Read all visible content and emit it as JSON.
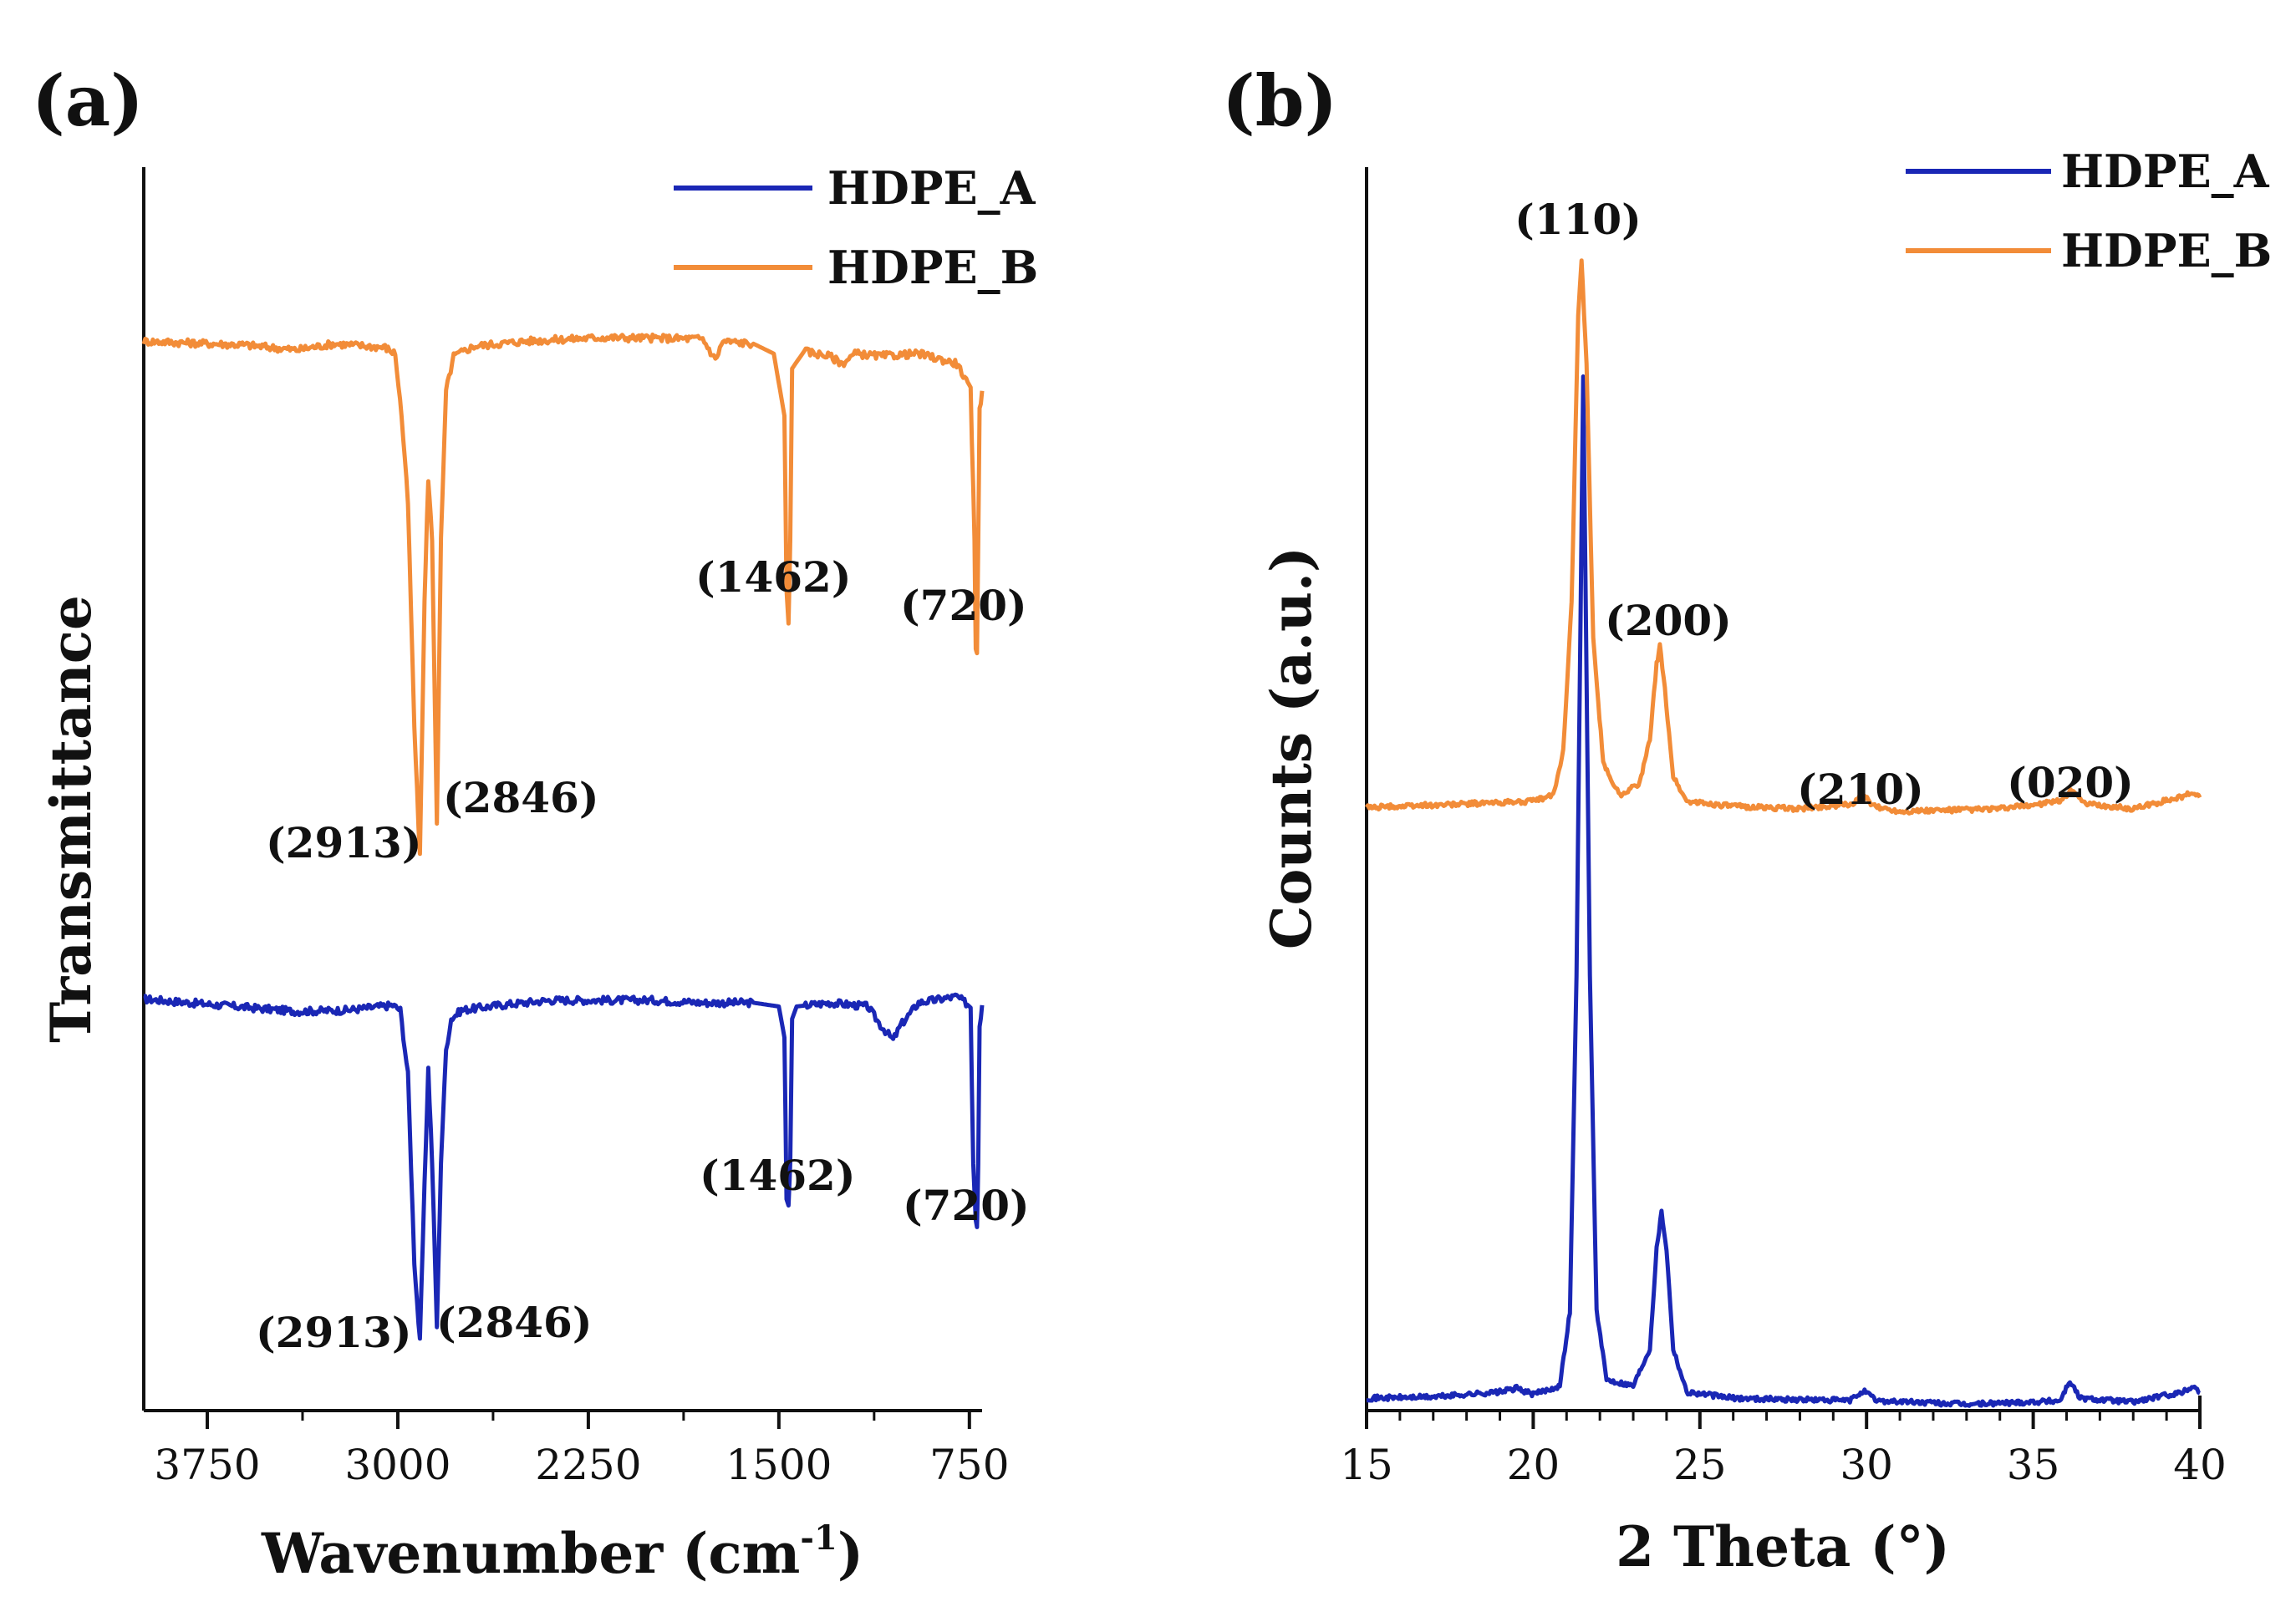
{
  "panel_a": {
    "label": "(a)"
  },
  "panel_b": {
    "label": "(b)"
  },
  "chart_data": [
    {
      "type": "line",
      "panel": "(a)",
      "title": "",
      "xlabel_main": "Wavenumber (cm",
      "xlabel_sup": "-1",
      "xlabel_close": ")",
      "ylabel": "Transmittance",
      "xlim": [
        4000,
        700
      ],
      "x_reversed": true,
      "ylim": [
        0,
        1
      ],
      "xticks": [
        3750,
        3000,
        2250,
        1500,
        750
      ],
      "xtick_labels": [
        "3750",
        "3000",
        "2250",
        "1500",
        "750"
      ],
      "legend_position": "top-right",
      "series": [
        {
          "name": "HDPE_A",
          "color": "#1a27b5",
          "baseline": 0.33,
          "points": [
            [
              4000,
              0.331
            ],
            [
              3700,
              0.326
            ],
            [
              3400,
              0.321
            ],
            [
              3200,
              0.322
            ],
            [
              3020,
              0.326
            ],
            [
              2990,
              0.322
            ],
            [
              2960,
              0.27
            ],
            [
              2935,
              0.12
            ],
            [
              2913,
              0.055
            ],
            [
              2895,
              0.18
            ],
            [
              2880,
              0.275
            ],
            [
              2865,
              0.2
            ],
            [
              2846,
              0.068
            ],
            [
              2830,
              0.2
            ],
            [
              2810,
              0.29
            ],
            [
              2790,
              0.315
            ],
            [
              2750,
              0.322
            ],
            [
              2600,
              0.326
            ],
            [
              2400,
              0.33
            ],
            [
              2000,
              0.33
            ],
            [
              1800,
              0.328
            ],
            [
              1600,
              0.328
            ],
            [
              1500,
              0.325
            ],
            [
              1478,
              0.3
            ],
            [
              1470,
              0.17
            ],
            [
              1462,
              0.165
            ],
            [
              1455,
              0.2
            ],
            [
              1448,
              0.315
            ],
            [
              1430,
              0.325
            ],
            [
              1300,
              0.328
            ],
            [
              1150,
              0.325
            ],
            [
              1100,
              0.31
            ],
            [
              1050,
              0.298
            ],
            [
              1020,
              0.31
            ],
            [
              950,
              0.328
            ],
            [
              800,
              0.333
            ],
            [
              745,
              0.325
            ],
            [
              735,
              0.2
            ],
            [
              725,
              0.155
            ],
            [
              720,
              0.15
            ],
            [
              715,
              0.2
            ],
            [
              710,
              0.31
            ],
            [
              700,
              0.326
            ]
          ]
        },
        {
          "name": "HDPE_B",
          "color": "#f28c38",
          "baseline": 0.86,
          "points": [
            [
              4000,
              0.86
            ],
            [
              3600,
              0.857
            ],
            [
              3400,
              0.853
            ],
            [
              3250,
              0.858
            ],
            [
              3050,
              0.855
            ],
            [
              3010,
              0.85
            ],
            [
              2985,
              0.8
            ],
            [
              2960,
              0.73
            ],
            [
              2935,
              0.55
            ],
            [
              2913,
              0.445
            ],
            [
              2895,
              0.65
            ],
            [
              2880,
              0.75
            ],
            [
              2865,
              0.7
            ],
            [
              2846,
              0.474
            ],
            [
              2830,
              0.7
            ],
            [
              2810,
              0.82
            ],
            [
              2780,
              0.848
            ],
            [
              2700,
              0.856
            ],
            [
              2500,
              0.86
            ],
            [
              2200,
              0.863
            ],
            [
              1800,
              0.862
            ],
            [
              1750,
              0.845
            ],
            [
              1720,
              0.86
            ],
            [
              1600,
              0.858
            ],
            [
              1520,
              0.85
            ],
            [
              1478,
              0.8
            ],
            [
              1470,
              0.66
            ],
            [
              1462,
              0.633
            ],
            [
              1455,
              0.7
            ],
            [
              1448,
              0.838
            ],
            [
              1400,
              0.852
            ],
            [
              1300,
              0.848
            ],
            [
              1250,
              0.842
            ],
            [
              1200,
              0.85
            ],
            [
              1100,
              0.848
            ],
            [
              950,
              0.85
            ],
            [
              800,
              0.842
            ],
            [
              780,
              0.835
            ],
            [
              745,
              0.82
            ],
            [
              730,
              0.7
            ],
            [
              725,
              0.615
            ],
            [
              720,
              0.61
            ],
            [
              715,
              0.7
            ],
            [
              710,
              0.805
            ],
            [
              700,
              0.82
            ]
          ]
        }
      ],
      "annotations": [
        {
          "text": "(2913)",
          "series": "HDPE_B"
        },
        {
          "text": "(2846)",
          "series": "HDPE_B"
        },
        {
          "text": "(1462)",
          "series": "HDPE_B"
        },
        {
          "text": "(720)",
          "series": "HDPE_B"
        },
        {
          "text": "(2913)",
          "series": "HDPE_A"
        },
        {
          "text": "(2846)",
          "series": "HDPE_A"
        },
        {
          "text": "(1462)",
          "series": "HDPE_A"
        },
        {
          "text": "(720)",
          "series": "HDPE_A"
        }
      ]
    },
    {
      "type": "line",
      "panel": "(b)",
      "title": "",
      "xlabel": "2 Theta (°)",
      "ylabel": "Counts (a.u.)",
      "xlim": [
        15,
        40
      ],
      "ylim": [
        0,
        1
      ],
      "xticks": [
        15,
        20,
        25,
        30,
        35,
        40
      ],
      "xtick_labels": [
        "15",
        "20",
        "25",
        "30",
        "35",
        "40"
      ],
      "legend_position": "top-right",
      "series": [
        {
          "name": "HDPE_A",
          "color": "#1a27b5",
          "points": [
            [
              15,
              0.01
            ],
            [
              17,
              0.011
            ],
            [
              19,
              0.015
            ],
            [
              19.5,
              0.018
            ],
            [
              20,
              0.013
            ],
            [
              20.8,
              0.02
            ],
            [
              21.1,
              0.08
            ],
            [
              21.3,
              0.35
            ],
            [
              21.5,
              0.83
            ],
            [
              21.7,
              0.35
            ],
            [
              21.9,
              0.08
            ],
            [
              22.2,
              0.025
            ],
            [
              23,
              0.02
            ],
            [
              23.5,
              0.05
            ],
            [
              23.7,
              0.13
            ],
            [
              23.85,
              0.16
            ],
            [
              24,
              0.13
            ],
            [
              24.2,
              0.05
            ],
            [
              24.6,
              0.015
            ],
            [
              26,
              0.01
            ],
            [
              29.5,
              0.008
            ],
            [
              29.9,
              0.016
            ],
            [
              30.3,
              0.008
            ],
            [
              33,
              0.005
            ],
            [
              35.8,
              0.008
            ],
            [
              36.1,
              0.024
            ],
            [
              36.4,
              0.01
            ],
            [
              38,
              0.007
            ],
            [
              39.5,
              0.015
            ],
            [
              39.8,
              0.02
            ],
            [
              40,
              0.014
            ]
          ]
        },
        {
          "name": "HDPE_B",
          "color": "#f28c38",
          "points": [
            [
              15,
              0.485
            ],
            [
              18,
              0.488
            ],
            [
              20,
              0.49
            ],
            [
              20.6,
              0.495
            ],
            [
              20.9,
              0.53
            ],
            [
              21.15,
              0.65
            ],
            [
              21.35,
              0.88
            ],
            [
              21.45,
              0.925
            ],
            [
              21.6,
              0.84
            ],
            [
              21.8,
              0.62
            ],
            [
              22.1,
              0.52
            ],
            [
              22.6,
              0.495
            ],
            [
              23.2,
              0.505
            ],
            [
              23.5,
              0.54
            ],
            [
              23.7,
              0.6
            ],
            [
              23.8,
              0.615
            ],
            [
              23.95,
              0.58
            ],
            [
              24.2,
              0.51
            ],
            [
              24.6,
              0.49
            ],
            [
              26,
              0.486
            ],
            [
              28,
              0.484
            ],
            [
              29.6,
              0.488
            ],
            [
              29.9,
              0.495
            ],
            [
              30.2,
              0.486
            ],
            [
              31,
              0.482
            ],
            [
              34,
              0.484
            ],
            [
              35.8,
              0.49
            ],
            [
              36.2,
              0.5
            ],
            [
              36.5,
              0.488
            ],
            [
              38,
              0.484
            ],
            [
              39.5,
              0.494
            ],
            [
              39.8,
              0.497
            ],
            [
              40,
              0.493
            ]
          ]
        }
      ],
      "annotations": [
        {
          "text": "(110)",
          "series": "HDPE_B"
        },
        {
          "text": "(200)",
          "series": "HDPE_B"
        },
        {
          "text": "(210)",
          "series": "HDPE_B"
        },
        {
          "text": "(020)",
          "series": "HDPE_B"
        }
      ]
    }
  ]
}
